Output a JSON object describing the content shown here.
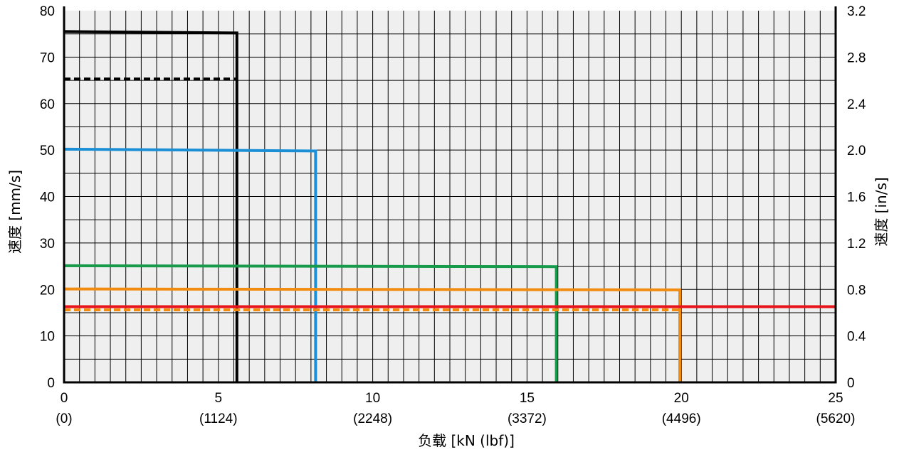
{
  "chart_data": {
    "type": "line",
    "xlabel": "负载 [kN (lbf)]",
    "ylabel": "速度 [mm/s]",
    "y2label": "速度 [in/s]",
    "xlim": [
      0,
      25
    ],
    "ylim": [
      0,
      80
    ],
    "y2lim": [
      0,
      3.2
    ],
    "grid": true,
    "x_ticks": [
      {
        "value": 0,
        "label": "0",
        "sublabel": "(0)"
      },
      {
        "value": 5,
        "label": "5",
        "sublabel": "(1124)"
      },
      {
        "value": 10,
        "label": "10",
        "sublabel": "(2248)"
      },
      {
        "value": 15,
        "label": "15",
        "sublabel": "(3372)"
      },
      {
        "value": 20,
        "label": "20",
        "sublabel": "(4496)"
      },
      {
        "value": 25,
        "label": "25",
        "sublabel": "(5620)"
      }
    ],
    "y_ticks": [
      0,
      10,
      20,
      30,
      40,
      50,
      60,
      70,
      80
    ],
    "y2_ticks": [
      "0",
      "0.4",
      "0.8",
      "1.2",
      "1.6",
      "2.0",
      "2.4",
      "2.8",
      "3.2"
    ],
    "series": [
      {
        "color": "#000000",
        "dashed": false,
        "x": [
          0,
          5.6,
          5.6
        ],
        "y": [
          75.5,
          75.2,
          0
        ]
      },
      {
        "color": "#000000",
        "dashed": true,
        "x": [
          0,
          5.6
        ],
        "y": [
          65.3,
          65.3
        ]
      },
      {
        "color": "#1a8fd6",
        "dashed": false,
        "x": [
          0,
          8.15,
          8.15
        ],
        "y": [
          50.2,
          49.8,
          0
        ]
      },
      {
        "color": "#179a4a",
        "dashed": false,
        "x": [
          0,
          15.95,
          15.95
        ],
        "y": [
          25.1,
          24.9,
          0
        ]
      },
      {
        "color": "#f28c10",
        "dashed": false,
        "x": [
          0,
          19.95,
          19.95
        ],
        "y": [
          20.1,
          19.9,
          0
        ]
      },
      {
        "color": "#f28c10",
        "dashed": true,
        "x": [
          0,
          19.95
        ],
        "y": [
          15.6,
          15.6
        ]
      },
      {
        "color": "#e8141c",
        "dashed": false,
        "x": [
          0,
          25
        ],
        "y": [
          16.3,
          16.3
        ]
      }
    ]
  }
}
